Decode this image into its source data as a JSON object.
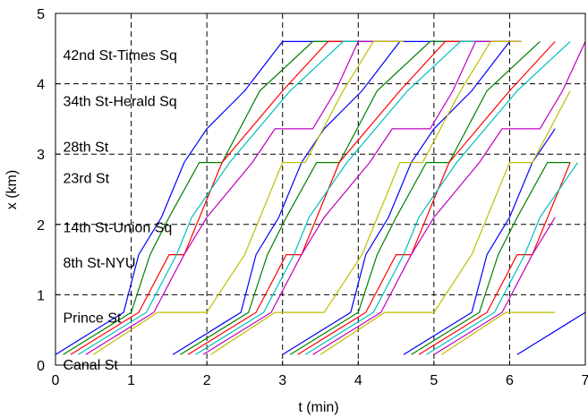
{
  "chart_data": {
    "type": "line",
    "title": "",
    "xlabel": "t (min)",
    "ylabel": "x (km)",
    "xlim": [
      0,
      7
    ],
    "ylim": [
      0,
      5
    ],
    "xticks": [
      "0",
      "1",
      "2",
      "3",
      "4",
      "5",
      "6",
      "7"
    ],
    "yticks": [
      "0",
      "1",
      "2",
      "3",
      "4",
      "5"
    ],
    "grid": "dashed",
    "stations": [
      {
        "name": "Canal St",
        "x": 0.0
      },
      {
        "name": "Prince St",
        "x": 0.75
      },
      {
        "name": "8th St-NYU",
        "x": 1.57
      },
      {
        "name": "14th St-Union Sq",
        "x": 2.1
      },
      {
        "name": "23rd St",
        "x": 2.88
      },
      {
        "name": "28th St",
        "x": 3.36
      },
      {
        "name": "34th St-Herald Sq",
        "x": 3.9
      },
      {
        "name": "42nd St-Times Sq",
        "x": 4.6
      }
    ],
    "series_colors": [
      "#0000ff",
      "#008000",
      "#ff0000",
      "#00bfbf",
      "#bf00bf",
      "#bfbf00"
    ],
    "series": [
      {
        "values": [
          [
            0.0,
            0.15
          ],
          [
            0.9,
            0.75
          ],
          [
            1.1,
            1.57
          ],
          [
            1.4,
            2.1
          ],
          [
            1.7,
            2.88
          ],
          [
            2.0,
            3.36
          ],
          [
            2.5,
            3.9
          ],
          [
            3.0,
            4.6
          ],
          [
            4.6,
            4.6
          ]
        ]
      },
      {
        "values": [
          [
            0.1,
            0.15
          ],
          [
            1.0,
            0.75
          ],
          [
            1.25,
            1.57
          ],
          [
            1.5,
            2.1
          ],
          [
            1.9,
            2.88
          ],
          [
            2.2,
            2.88
          ],
          [
            2.7,
            3.9
          ],
          [
            3.4,
            4.6
          ],
          [
            4.6,
            4.6
          ]
        ]
      },
      {
        "values": [
          [
            0.2,
            0.15
          ],
          [
            1.1,
            0.75
          ],
          [
            1.5,
            1.57
          ],
          [
            1.7,
            1.57
          ],
          [
            2.2,
            2.88
          ],
          [
            3.0,
            3.9
          ],
          [
            3.6,
            4.6
          ],
          [
            4.6,
            4.6
          ]
        ]
      },
      {
        "values": [
          [
            0.3,
            0.15
          ],
          [
            1.2,
            0.75
          ],
          [
            1.6,
            1.57
          ],
          [
            1.8,
            2.1
          ],
          [
            2.3,
            2.88
          ],
          [
            3.1,
            3.9
          ],
          [
            3.8,
            4.6
          ],
          [
            4.6,
            4.6
          ]
        ]
      },
      {
        "values": [
          [
            0.4,
            0.15
          ],
          [
            1.3,
            0.75
          ],
          [
            1.7,
            1.57
          ],
          [
            2.0,
            2.1
          ],
          [
            2.6,
            2.88
          ],
          [
            2.9,
            3.36
          ],
          [
            3.4,
            3.36
          ],
          [
            3.7,
            3.9
          ],
          [
            4.0,
            4.6
          ],
          [
            4.6,
            4.6
          ]
        ]
      },
      {
        "values": [
          [
            0.5,
            0.15
          ],
          [
            1.35,
            0.75
          ],
          [
            2.0,
            0.75
          ],
          [
            2.5,
            1.57
          ],
          [
            3.0,
            2.88
          ],
          [
            3.3,
            2.88
          ],
          [
            3.8,
            3.9
          ],
          [
            4.2,
            4.6
          ],
          [
            4.6,
            4.6
          ]
        ]
      }
    ],
    "annotations": [
      "42nd St-Times Sq",
      "34th St-Herald Sq",
      "28th St",
      "23rd St",
      "14th St-Union Sq",
      "8th St-NYU",
      "Prince St",
      "Canal St"
    ]
  }
}
